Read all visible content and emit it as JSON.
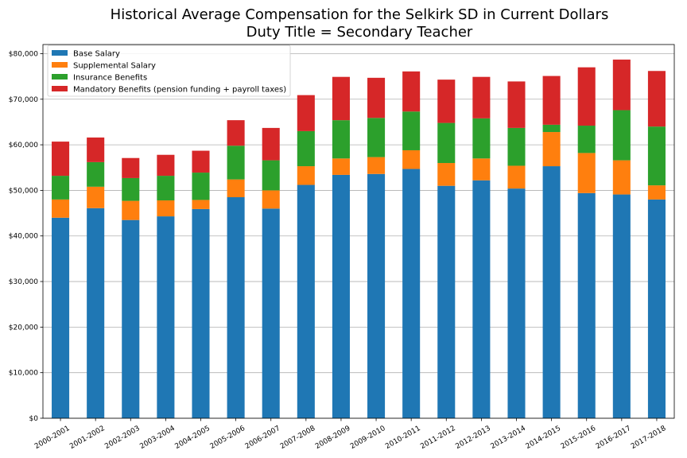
{
  "chart_data": {
    "type": "bar",
    "stacked": true,
    "title": "Historical Average Compensation for the Selkirk SD in Current Dollars",
    "subtitle": "Duty Title = Secondary Teacher",
    "xlabel": "",
    "ylabel": "",
    "ylim": [
      0,
      82000
    ],
    "yticks": [
      0,
      10000,
      20000,
      30000,
      40000,
      50000,
      60000,
      70000,
      80000
    ],
    "ytick_labels": [
      "$0",
      "$10,000",
      "$20,000",
      "$30,000",
      "$40,000",
      "$50,000",
      "$60,000",
      "$70,000",
      "$80,000"
    ],
    "grid": "horizontal",
    "legend_position": "top-left",
    "categories": [
      "2000-2001",
      "2001-2002",
      "2002-2003",
      "2003-2004",
      "2004-2005",
      "2005-2006",
      "2006-2007",
      "2007-2008",
      "2008-2009",
      "2009-2010",
      "2010-2011",
      "2011-2012",
      "2012-2013",
      "2013-2014",
      "2014-2015",
      "2015-2016",
      "2016-2017",
      "2017-2018"
    ],
    "series": [
      {
        "name": "Base Salary",
        "color": "#1f77b4",
        "values": [
          44000,
          46100,
          43500,
          44300,
          45900,
          48500,
          46000,
          51200,
          53400,
          53600,
          54700,
          51000,
          52200,
          50400,
          55300,
          49400,
          49100,
          48000
        ]
      },
      {
        "name": "Supplemental Salary",
        "color": "#ff7f0e",
        "values": [
          4000,
          4700,
          4200,
          3500,
          2000,
          3900,
          4000,
          4100,
          3600,
          3700,
          4100,
          5000,
          4800,
          5000,
          7500,
          8800,
          7500,
          3100
        ]
      },
      {
        "name": "Insurance Benefits",
        "color": "#2ca02c",
        "values": [
          5200,
          5400,
          5000,
          5400,
          6000,
          7400,
          6600,
          7700,
          8400,
          8600,
          8500,
          8800,
          8800,
          8300,
          1600,
          6000,
          11000,
          12900
        ]
      },
      {
        "name": "Mandatory Benefits (pension funding + payroll taxes)",
        "color": "#d62728",
        "values": [
          7500,
          5400,
          4400,
          4600,
          4800,
          5600,
          7100,
          7900,
          9500,
          8800,
          8800,
          9500,
          9100,
          10200,
          10700,
          12800,
          11100,
          12200
        ]
      }
    ]
  }
}
